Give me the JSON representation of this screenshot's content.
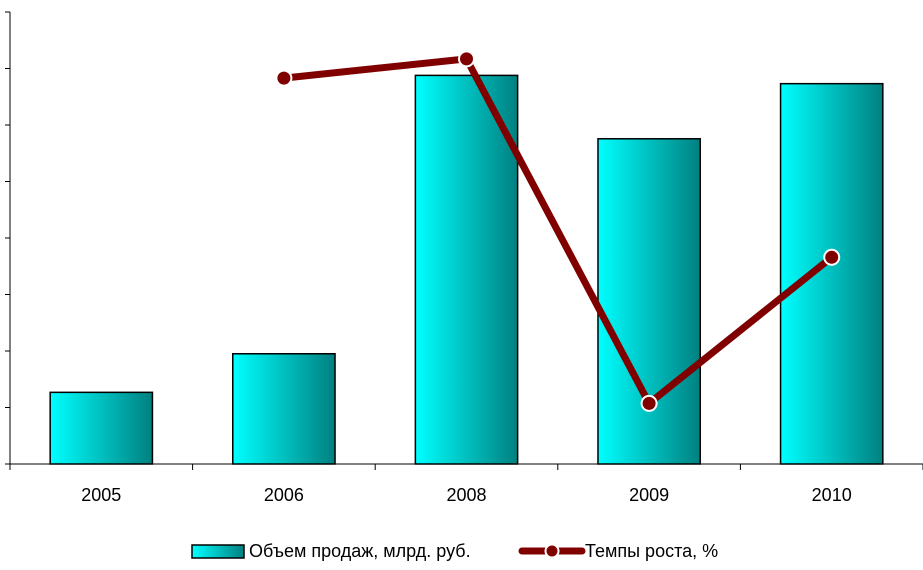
{
  "chart_data": {
    "type": "bar",
    "categories": [
      "2005",
      "2006",
      "2008",
      "2009",
      "2010"
    ],
    "series": [
      {
        "name": "Объем продаж, млрд. руб.",
        "type": "bar",
        "axis": "primary",
        "values": [
          1.3,
          2.0,
          7.05,
          5.9,
          6.9
        ]
      },
      {
        "name": "Темпы роста, %",
        "type": "line",
        "axis": "secondary",
        "values": [
          null,
          7.0,
          7.35,
          1.1,
          3.75
        ]
      }
    ],
    "ylim": [
      0,
      8.2
    ],
    "y_tick_count": 8,
    "title": "",
    "xlabel": "",
    "ylabel": "",
    "tick_labels_y_visible": false,
    "legend": "bottom-center",
    "grid": false
  },
  "colors": {
    "bar_light": "#00FFFF",
    "bar_dark": "#008080",
    "line": "#800000",
    "marker_edge": "#ffffff",
    "axis": "#000000",
    "text": "#000000"
  }
}
